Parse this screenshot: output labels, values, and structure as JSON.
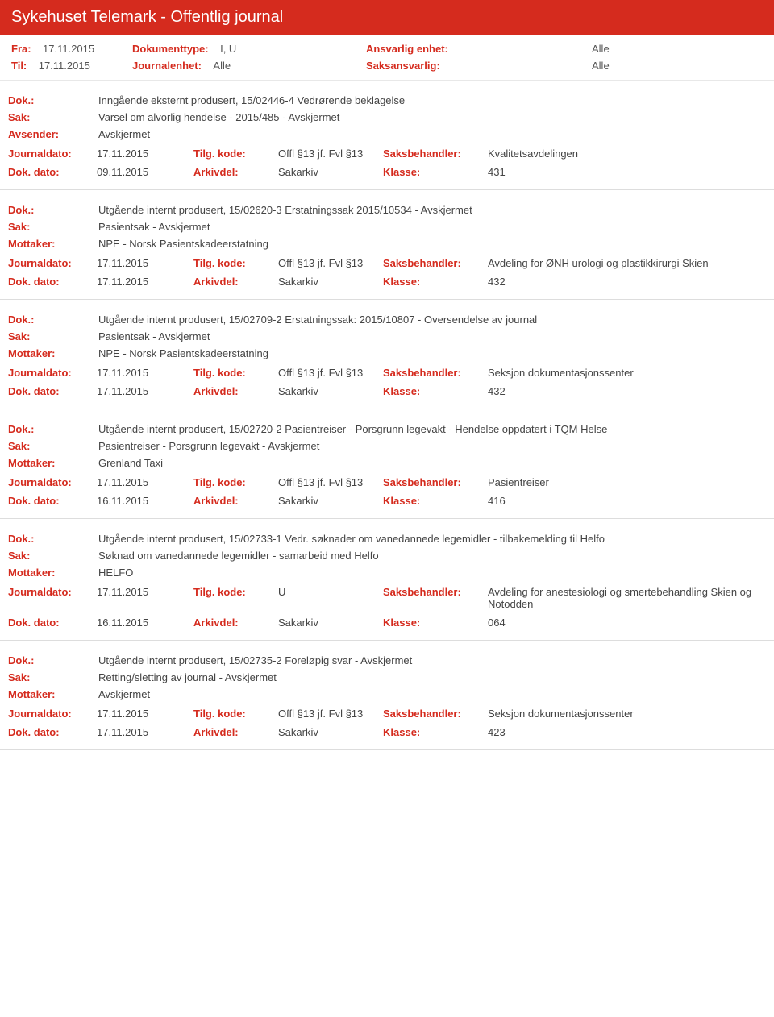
{
  "header": {
    "title": "Sykehuset Telemark - Offentlig journal"
  },
  "filters": {
    "fra_label": "Fra:",
    "fra_val": "17.11.2015",
    "til_label": "Til:",
    "til_val": "17.11.2015",
    "doktype_label": "Dokumenttype:",
    "doktype_val": "I, U",
    "journalenhet_label": "Journalenhet:",
    "journalenhet_val": "Alle",
    "ansvarlig_label": "Ansvarlig enhet:",
    "ansvarlig_val": "Alle",
    "saksansv_label": "Saksansvarlig:",
    "saksansv_val": "Alle"
  },
  "labels": {
    "dok": "Dok.:",
    "sak": "Sak:",
    "avsender": "Avsender:",
    "mottaker": "Mottaker:",
    "journaldato": "Journaldato:",
    "dokdato": "Dok. dato:",
    "tilgkode": "Tilg. kode:",
    "arkivdel": "Arkivdel:",
    "saksbehandler": "Saksbehandler:",
    "klasse": "Klasse:"
  },
  "entries": [
    {
      "dok": "Inngående eksternt produsert, 15/02446-4 Vedrørende beklagelse",
      "sak": "Varsel om alvorlig hendelse - 2015/485 - Avskjermet",
      "party_label": "Avsender:",
      "party": "Avskjermet",
      "journaldato": "17.11.2015",
      "tilgkode": "Offl §13 jf. Fvl §13",
      "saksbehandler": "Kvalitetsavdelingen",
      "dokdato": "09.11.2015",
      "arkivdel": "Sakarkiv",
      "klasse": "431"
    },
    {
      "dok": "Utgående internt produsert, 15/02620-3 Erstatningssak 2015/10534 - Avskjermet",
      "sak": "Pasientsak - Avskjermet",
      "party_label": "Mottaker:",
      "party": "NPE - Norsk Pasientskadeerstatning",
      "journaldato": "17.11.2015",
      "tilgkode": "Offl §13 jf. Fvl §13",
      "saksbehandler": "Avdeling for ØNH urologi og plastikkirurgi Skien",
      "dokdato": "17.11.2015",
      "arkivdel": "Sakarkiv",
      "klasse": "432"
    },
    {
      "dok": "Utgående internt produsert, 15/02709-2 Erstatningssak: 2015/10807 - Oversendelse av journal",
      "sak": "Pasientsak - Avskjermet",
      "party_label": "Mottaker:",
      "party": "NPE - Norsk Pasientskadeerstatning",
      "journaldato": "17.11.2015",
      "tilgkode": "Offl §13 jf. Fvl §13",
      "saksbehandler": "Seksjon dokumentasjonssenter",
      "dokdato": "17.11.2015",
      "arkivdel": "Sakarkiv",
      "klasse": "432"
    },
    {
      "dok": "Utgående internt produsert, 15/02720-2 Pasientreiser - Porsgrunn legevakt - Hendelse oppdatert i TQM Helse",
      "sak": "Pasientreiser - Porsgrunn legevakt - Avskjermet",
      "party_label": "Mottaker:",
      "party": "Grenland Taxi",
      "journaldato": "17.11.2015",
      "tilgkode": "Offl §13 jf. Fvl §13",
      "saksbehandler": "Pasientreiser",
      "dokdato": "16.11.2015",
      "arkivdel": "Sakarkiv",
      "klasse": "416"
    },
    {
      "dok": "Utgående internt produsert, 15/02733-1 Vedr. søknader om vanedannede legemidler - tilbakemelding til Helfo",
      "sak": "Søknad om vanedannede legemidler - samarbeid med Helfo",
      "party_label": "Mottaker:",
      "party": "HELFO",
      "journaldato": "17.11.2015",
      "tilgkode": "U",
      "saksbehandler": "Avdeling for anestesiologi og smertebehandling Skien og Notodden",
      "dokdato": "16.11.2015",
      "arkivdel": "Sakarkiv",
      "klasse": "064"
    },
    {
      "dok": "Utgående internt produsert, 15/02735-2 Foreløpig svar - Avskjermet",
      "sak": "Retting/sletting av journal - Avskjermet",
      "party_label": "Mottaker:",
      "party": "Avskjermet",
      "journaldato": "17.11.2015",
      "tilgkode": "Offl §13 jf. Fvl §13",
      "saksbehandler": "Seksjon dokumentasjonssenter",
      "dokdato": "17.11.2015",
      "arkivdel": "Sakarkiv",
      "klasse": "423"
    }
  ]
}
